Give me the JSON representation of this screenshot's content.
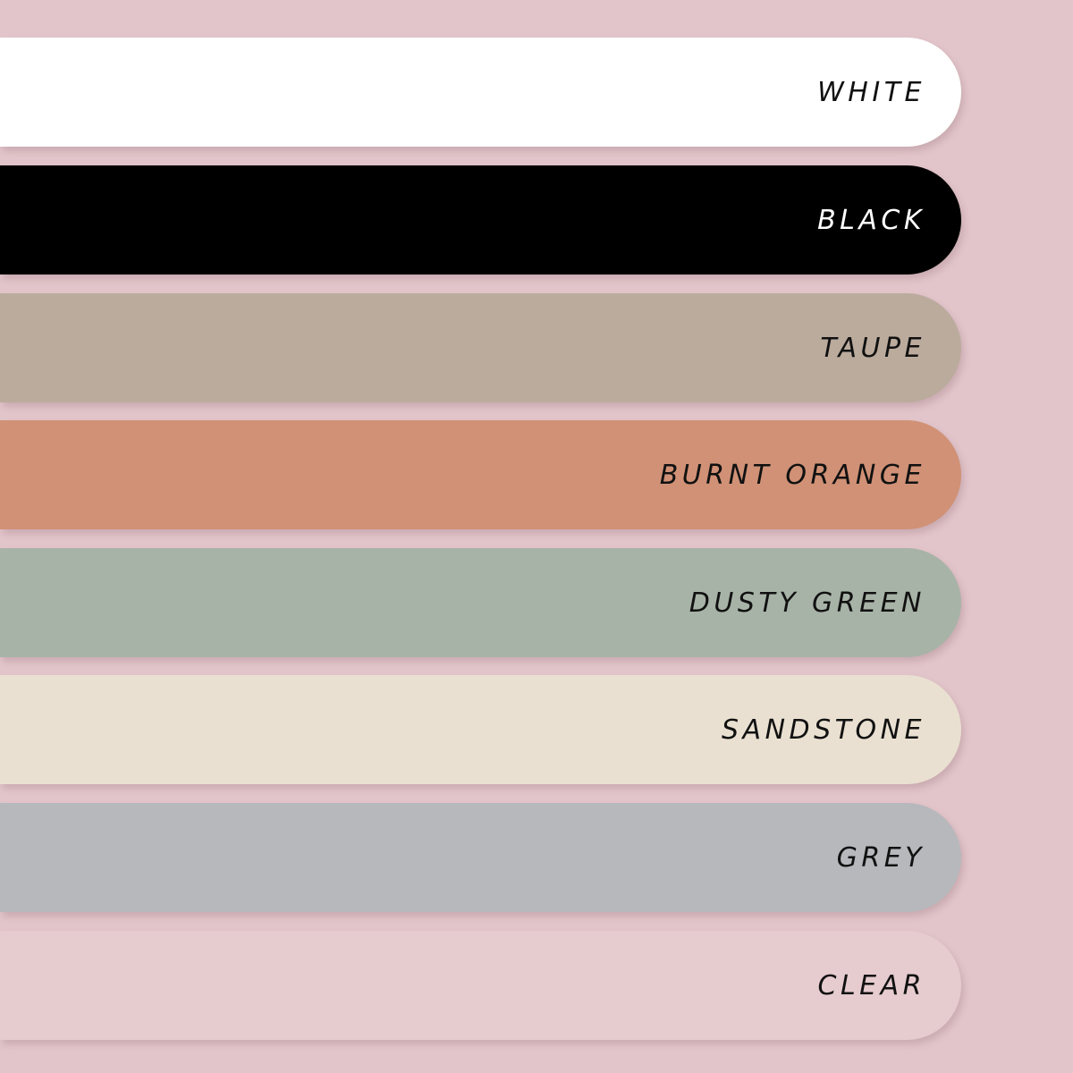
{
  "swatches": [
    {
      "label": "WHITE",
      "color": "#ffffff",
      "text_color": "#111111"
    },
    {
      "label": "BLACK",
      "color": "#000000",
      "text_color": "#ffffff"
    },
    {
      "label": "TAUPE",
      "color": "#bbab9d",
      "text_color": "#111111"
    },
    {
      "label": "BURNT ORANGE",
      "color": "#d09176",
      "text_color": "#111111"
    },
    {
      "label": "DUSTY GREEN",
      "color": "#a8b3a7",
      "text_color": "#111111"
    },
    {
      "label": "SANDSTONE",
      "color": "#eae0d1",
      "text_color": "#111111"
    },
    {
      "label": "GREY",
      "color": "#b7b8bc",
      "text_color": "#111111"
    },
    {
      "label": "CLEAR",
      "color": "#e6cbcf",
      "text_color": "#111111"
    }
  ]
}
